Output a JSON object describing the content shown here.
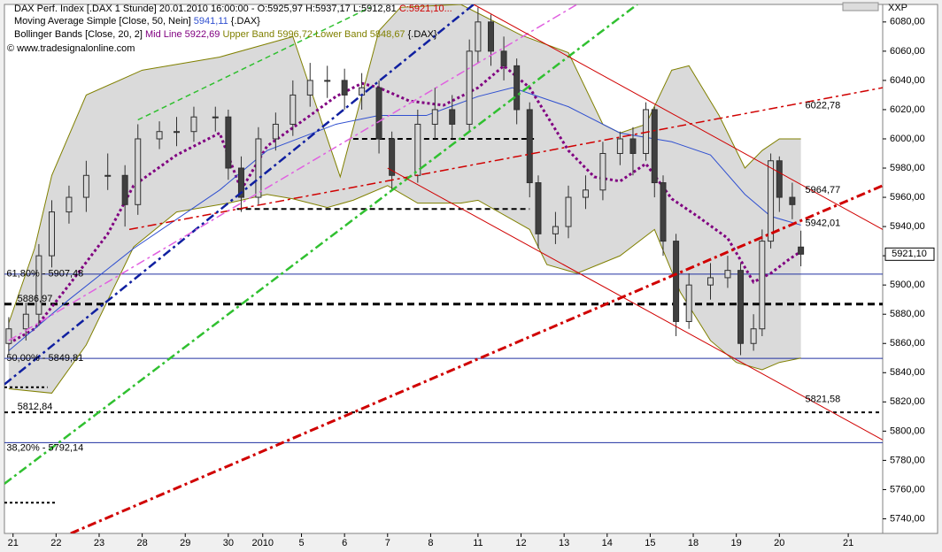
{
  "chart_data": {
    "type": "candlestick",
    "title": "DAX Perf. Index [.DAX  1 Stunde] 20.01.2010 16:00:00 - O:5925,97 H:5937,17 L:5912,81 ",
    "title_close": "C:5921,10...",
    "title_close_color": "#d00000",
    "legend": [
      [
        {
          "text": "Moving Average Simple [Close, 50, Nein] ",
          "color": "#000000"
        },
        {
          "text": "5941,11",
          "color": "#3050d0"
        },
        {
          "text": " {.DAX}",
          "color": "#000000"
        }
      ],
      [
        {
          "text": "Bollinger Bands [Close, 20, 2] ",
          "color": "#000000"
        },
        {
          "text": "Mid Line 5922,69",
          "color": "#800080"
        },
        {
          "text": " Upper Band 5996,72 Lower Band 5848,67",
          "color": "#808000"
        },
        {
          "text": " {.DAX}",
          "color": "#000000"
        }
      ]
    ],
    "copyright": "© www.tradesignalonline.com",
    "corner_label": "XXP",
    "xlim": [
      -0.2,
      20.2
    ],
    "xticks": [
      {
        "value": 0,
        "label": "21"
      },
      {
        "value": 1,
        "label": "22"
      },
      {
        "value": 2,
        "label": "23"
      },
      {
        "value": 3,
        "label": "28"
      },
      {
        "value": 4,
        "label": "29"
      },
      {
        "value": 5,
        "label": "30"
      },
      {
        "value": 5.8,
        "label": "2010"
      },
      {
        "value": 6.7,
        "label": "5"
      },
      {
        "value": 7.7,
        "label": "6"
      },
      {
        "value": 8.7,
        "label": "7"
      },
      {
        "value": 9.7,
        "label": "8"
      },
      {
        "value": 10.8,
        "label": "11"
      },
      {
        "value": 11.8,
        "label": "12"
      },
      {
        "value": 12.8,
        "label": "13"
      },
      {
        "value": 13.8,
        "label": "14"
      },
      {
        "value": 14.8,
        "label": "15"
      },
      {
        "value": 15.8,
        "label": "18"
      },
      {
        "value": 16.8,
        "label": "19"
      },
      {
        "value": 17.8,
        "label": "20"
      },
      {
        "value": 19.4,
        "label": "21"
      }
    ],
    "ylim": [
      5730,
      6092
    ],
    "yticks": [
      {
        "value": 5740,
        "label": "5740,00"
      },
      {
        "value": 5760,
        "label": "5760,00"
      },
      {
        "value": 5780,
        "label": "5780,00"
      },
      {
        "value": 5800,
        "label": "5800,00"
      },
      {
        "value": 5820,
        "label": "5820,00"
      },
      {
        "value": 5840,
        "label": "5840,00"
      },
      {
        "value": 5860,
        "label": "5860,00"
      },
      {
        "value": 5880,
        "label": "5880,00"
      },
      {
        "value": 5900,
        "label": "5900,00"
      },
      {
        "value": 5920,
        "label": "5920,00"
      },
      {
        "value": 5940,
        "label": "5940,00"
      },
      {
        "value": 5960,
        "label": "5960,00"
      },
      {
        "value": 5980,
        "label": "5980,00"
      },
      {
        "value": 6000,
        "label": "6000,00"
      },
      {
        "value": 6020,
        "label": "6020,00"
      },
      {
        "value": 6040,
        "label": "6040,00"
      },
      {
        "value": 6060,
        "label": "6060,00"
      },
      {
        "value": 6080,
        "label": "6080,00"
      }
    ],
    "candles": {
      "up_color": "#d8d8d8",
      "down_color": "#404040",
      "x": [
        -0.1,
        0.3,
        0.6,
        0.9,
        1.3,
        1.7,
        2.2,
        2.6,
        2.9,
        3.4,
        3.8,
        4.2,
        4.7,
        5.0,
        5.3,
        5.7,
        6.1,
        6.5,
        6.9,
        7.3,
        7.7,
        8.1,
        8.5,
        8.8,
        9.4,
        9.8,
        10.2,
        10.6,
        10.8,
        11.1,
        11.4,
        11.7,
        12.0,
        12.2,
        12.6,
        12.9,
        13.3,
        13.7,
        14.1,
        14.4,
        14.7,
        14.9,
        15.1,
        15.4,
        15.7,
        16.2,
        16.6,
        16.9,
        17.2,
        17.4,
        17.6,
        17.8,
        18.1,
        18.3
      ],
      "open": [
        5860,
        5870,
        5880,
        5920,
        5950,
        5960,
        5975,
        5975,
        5955,
        6000,
        6005,
        6005,
        6015,
        6015,
        5980,
        5960,
        6000,
        6010,
        6030,
        6040,
        6040,
        6030,
        6035,
        6000,
        5975,
        6010,
        6020,
        6010,
        6060,
        6080,
        6060,
        6050,
        6020,
        5970,
        5935,
        5940,
        5960,
        5965,
        5990,
        6000,
        5990,
        6020,
        5970,
        5930,
        5875,
        5900,
        5905,
        5910,
        5860,
        5870,
        5930,
        5985,
        5960,
        5925.97
      ],
      "high": [
        5878,
        5888,
        5928,
        5958,
        5968,
        5985,
        5990,
        5982,
        6010,
        6012,
        6015,
        6022,
        6022,
        6020,
        5988,
        6008,
        6018,
        6040,
        6052,
        6050,
        6048,
        6045,
        6040,
        6005,
        6020,
        6035,
        6030,
        6068,
        6090,
        6085,
        6070,
        6055,
        6025,
        5975,
        5950,
        5968,
        5975,
        5998,
        6005,
        6008,
        6025,
        6022,
        5975,
        5935,
        5908,
        5915,
        5920,
        5915,
        5880,
        5938,
        5990,
        5988,
        5970,
        5937.17
      ],
      "low": [
        5852,
        5862,
        5872,
        5912,
        5942,
        5950,
        5965,
        5940,
        5948,
        5993,
        5995,
        5998,
        6005,
        5972,
        5950,
        5955,
        5992,
        6002,
        6022,
        6028,
        6020,
        6020,
        5990,
        5965,
        5970,
        6000,
        6000,
        6005,
        6052,
        6050,
        6040,
        6010,
        5960,
        5925,
        5928,
        5932,
        5952,
        5958,
        5982,
        5975,
        5985,
        5960,
        5920,
        5865,
        5870,
        5890,
        5898,
        5852,
        5855,
        5865,
        5925,
        5950,
        5945,
        5912.81
      ],
      "close": [
        5870,
        5880,
        5920,
        5950,
        5960,
        5975,
        5975,
        5955,
        6000,
        6005,
        6005,
        6015,
        6015,
        5980,
        5960,
        6000,
        6010,
        6030,
        6040,
        6040,
        6030,
        6035,
        6000,
        5975,
        6010,
        6020,
        6010,
        6060,
        6080,
        6060,
        6050,
        6020,
        5970,
        5935,
        5940,
        5960,
        5965,
        5990,
        6000,
        5990,
        6020,
        5970,
        5930,
        5875,
        5900,
        5905,
        5910,
        5860,
        5870,
        5930,
        5985,
        5960,
        5955,
        5921.1
      ]
    },
    "band_fill": "#d4d4d4",
    "series": [
      {
        "name": "Upper Band",
        "color": "#808000",
        "width": 1,
        "dash": "none",
        "x": [
          -0.1,
          0.5,
          0.9,
          1.7,
          3.0,
          4.8,
          6.5,
          7.6,
          8.5,
          9.0,
          10.4,
          11.8,
          12.9,
          13.7,
          14.1,
          14.7,
          15.3,
          15.7,
          16.4,
          17.0,
          17.4,
          17.8,
          18.3
        ],
        "values": [
          5874,
          5925,
          5975,
          6030,
          6047,
          6056,
          6070,
          5974,
          6074,
          6090,
          6092,
          6071,
          6059,
          6010,
          6004,
          6010,
          6047,
          6050,
          6016,
          5980,
          5992,
          6000,
          6000
        ]
      },
      {
        "name": "Lower Band",
        "color": "#808000",
        "width": 1,
        "dash": "none",
        "x": [
          -0.1,
          0.9,
          1.7,
          2.8,
          3.8,
          5.0,
          5.9,
          6.5,
          7.3,
          7.9,
          8.7,
          9.4,
          10.4,
          10.8,
          12.0,
          12.4,
          13.1,
          14.1,
          14.9,
          15.5,
          16.2,
          16.8,
          17.4,
          17.8,
          18.3
        ],
        "values": [
          5829,
          5826,
          5859,
          5926,
          5950,
          5956,
          5962,
          5959,
          5953,
          5958,
          5968,
          5956,
          5956,
          5958,
          5938,
          5914,
          5908,
          5920,
          5938,
          5895,
          5862,
          5847,
          5842,
          5847,
          5850
        ]
      },
      {
        "name": "Mid Line",
        "color": "#800080",
        "width": 3,
        "dash": "3,3",
        "x": [
          -0.1,
          0.5,
          1.3,
          2.2,
          2.8,
          3.8,
          4.8,
          5.3,
          5.9,
          6.9,
          7.5,
          8.1,
          8.5,
          9.2,
          10.0,
          10.8,
          11.4,
          12.0,
          12.9,
          13.5,
          14.1,
          14.7,
          15.3,
          15.9,
          16.6,
          17.2,
          17.6,
          18.0,
          18.3
        ],
        "values": [
          5860,
          5870,
          5900,
          5935,
          5968,
          5989,
          6004,
          5965,
          5995,
          6016,
          6029,
          6038,
          6035,
          6026,
          6023,
          6035,
          6050,
          6035,
          5992,
          5974,
          5971,
          5983,
          5959,
          5947,
          5932,
          5902,
          5908,
          5917,
          5923
        ]
      },
      {
        "name": "Moving Average Simple",
        "color": "#3050d0",
        "width": 1,
        "dash": "none",
        "x": [
          -0.1,
          1.3,
          2.8,
          4.8,
          5.9,
          7.5,
          8.5,
          9.6,
          10.8,
          11.6,
          12.9,
          14.1,
          15.3,
          16.2,
          17.0,
          17.6,
          18.3
        ],
        "values": [
          5855,
          5890,
          5925,
          5965,
          5992,
          6010,
          6016,
          6016,
          6029,
          6035,
          6022,
          6004,
          5998,
          5989,
          5962,
          5947,
          5941
        ]
      }
    ],
    "levels": [
      {
        "value": 5907.48,
        "color": "#2030a0",
        "width": 1,
        "dash": "none",
        "x": [
          -0.2,
          20.2
        ]
      },
      {
        "value": 5849.81,
        "color": "#2030a0",
        "width": 1,
        "dash": "none",
        "x": [
          -0.2,
          20.2
        ]
      },
      {
        "value": 5792.14,
        "color": "#2030a0",
        "width": 1,
        "dash": "none",
        "x": [
          -0.2,
          20.2
        ]
      },
      {
        "value": 5886.97,
        "color": "#000000",
        "width": 3,
        "dash": "8,5",
        "x": [
          -0.2,
          20.2
        ]
      },
      {
        "value": 5812.84,
        "color": "#000000",
        "width": 2,
        "dash": "4,4",
        "x": [
          -0.2,
          20.2
        ]
      },
      {
        "value": 5952,
        "color": "#000000",
        "width": 2,
        "dash": "6,4",
        "x": [
          5.2,
          12.0
        ]
      },
      {
        "value": 6000,
        "color": "#000000",
        "width": 2,
        "dash": "6,4",
        "x": [
          7.9,
          12.1
        ]
      },
      {
        "value": 5830,
        "color": "#000000",
        "width": 2,
        "dash": "3,3",
        "x": [
          -0.2,
          0.8
        ]
      },
      {
        "value": 5751,
        "color": "#000000",
        "width": 2,
        "dash": "3,3",
        "x": [
          -0.2,
          1.0
        ]
      }
    ],
    "trendlines": [
      {
        "color": "#d00000",
        "width": 3,
        "dash": "10,4,3,4",
        "x": [
          1.34,
          20.2
        ],
        "values": [
          5730,
          5968
        ]
      },
      {
        "color": "#d00000",
        "width": 1.5,
        "dash": "10,4,3,4",
        "x": [
          2.7,
          20.2
        ],
        "values": [
          5938,
          6035
        ]
      },
      {
        "color": "#1020a0",
        "width": 2.5,
        "dash": "10,4,3,4",
        "x": [
          -0.2,
          10.7
        ],
        "values": [
          5832,
          6092
        ]
      },
      {
        "color": "#e060e0",
        "width": 1.5,
        "dash": "10,4,3,4",
        "x": [
          -0.1,
          13.1
        ],
        "values": [
          5862,
          6092
        ]
      },
      {
        "color": "#30c030",
        "width": 2.5,
        "dash": "10,4,3,4",
        "x": [
          -0.2,
          14.5
        ],
        "values": [
          5764,
          6092
        ]
      },
      {
        "color": "#30c030",
        "width": 1.5,
        "dash": "6,4",
        "x": [
          2.9,
          8.3
        ],
        "values": [
          6013,
          6090
        ]
      },
      {
        "color": "#d00000",
        "width": 1,
        "dash": "none",
        "x": [
          10.7,
          20.2
        ],
        "values": [
          6092,
          5938
        ]
      },
      {
        "color": "#d00000",
        "width": 1,
        "dash": "none",
        "x": [
          8.7,
          20.2
        ],
        "values": [
          5980,
          5794
        ]
      }
    ],
    "annotations": [
      {
        "x": -0.15,
        "value": 5907.48,
        "label": "61,80% - 5907,48",
        "color": "#2030a0"
      },
      {
        "x": 0.1,
        "value": 5890.5,
        "label": "5886,97",
        "color": "#404040"
      },
      {
        "x": -0.15,
        "value": 5849.81,
        "label": "50,00% - 5849,81",
        "color": "#6070d0"
      },
      {
        "x": 0.1,
        "value": 5816.5,
        "label": "5812,84",
        "color": "#000000"
      },
      {
        "x": -0.15,
        "value": 5788.5,
        "label": "38,20% - 5792,14",
        "color": "#2030a0"
      },
      {
        "x": 18.4,
        "value": 6022.78,
        "label": "6022,78",
        "color": "#d00000"
      },
      {
        "x": 18.4,
        "value": 5964.77,
        "label": "5964,77",
        "color": "#d00000"
      },
      {
        "x": 18.4,
        "value": 5942.01,
        "label": "5942,01",
        "color": "#d00000"
      },
      {
        "x": 18.4,
        "value": 5821.58,
        "label": "5821,58",
        "color": "#d00000"
      }
    ],
    "last_price": {
      "value": 5921.1,
      "label": "5921,10"
    }
  }
}
